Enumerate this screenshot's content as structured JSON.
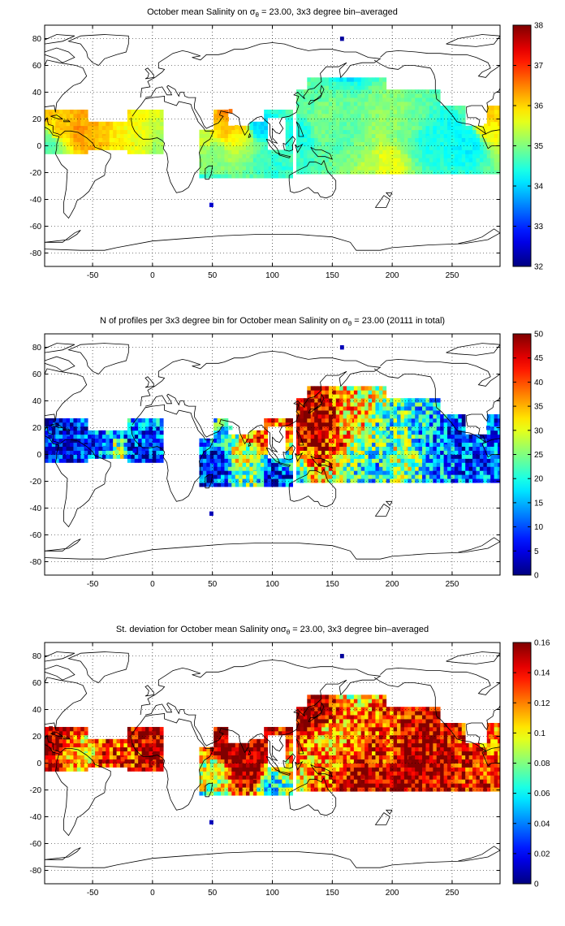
{
  "chart_data": [
    {
      "type": "heatmap",
      "title": "October mean Salinity on σθ = 23.00, 3x3 degree bin–averaged",
      "title_parts": {
        "prefix": "October mean Salinity on ",
        "sym": "σ",
        "sub": "θ",
        "suffix": " = 23.00, 3x3 degree bin–averaged"
      },
      "xlim": [
        -90,
        290
      ],
      "ylim": [
        -90,
        90
      ],
      "xticks": [
        -50,
        0,
        50,
        100,
        150,
        200,
        250
      ],
      "yticks": [
        -80,
        -60,
        -40,
        -20,
        0,
        20,
        40,
        60,
        80
      ],
      "grid": true,
      "colorbar": {
        "min": 32,
        "max": 38,
        "ticks": [
          32,
          33,
          34,
          35,
          36,
          37,
          38
        ]
      },
      "bin_size_deg": 3,
      "cells": [
        {
          "lon": 158,
          "lat": 80,
          "value": 32.2
        },
        {
          "lon": 49,
          "lat": -44,
          "value": 32.5
        },
        {
          "lon": -85,
          "lat": 24,
          "value": 36.2
        },
        {
          "lon": -82,
          "lat": 20,
          "value": 35.9
        },
        {
          "lon": -79,
          "lat": 12,
          "value": 36.0
        },
        {
          "lon": -76,
          "lat": 15,
          "value": 36.1
        },
        {
          "lon": -88,
          "lat": 6,
          "value": 34.9
        },
        {
          "lon": -85,
          "lat": 0,
          "value": 34.7
        },
        {
          "lon": -55,
          "lat": 18,
          "value": 36.2
        },
        {
          "lon": -60,
          "lat": 12,
          "value": 36.4
        },
        {
          "lon": -52,
          "lat": 9,
          "value": 36.2
        },
        {
          "lon": -40,
          "lat": 6,
          "value": 36.1
        },
        {
          "lon": -30,
          "lat": 4,
          "value": 35.8
        },
        {
          "lon": -20,
          "lat": 3,
          "value": 35.7
        },
        {
          "lon": -10,
          "lat": 2,
          "value": 35.6
        },
        {
          "lon": 5,
          "lat": 0,
          "value": 35.2
        },
        {
          "lon": 45,
          "lat": 5,
          "value": 35.4
        },
        {
          "lon": 50,
          "lat": -6,
          "value": 35.0
        },
        {
          "lon": 55,
          "lat": 15,
          "value": 36.0
        },
        {
          "lon": 62,
          "lat": 20,
          "value": 36.3
        },
        {
          "lon": 65,
          "lat": 26,
          "value": 36.6
        },
        {
          "lon": 70,
          "lat": 14,
          "value": 36.0
        },
        {
          "lon": 75,
          "lat": 5,
          "value": 35.6
        },
        {
          "lon": 80,
          "lat": -6,
          "value": 35.1
        },
        {
          "lon": 90,
          "lat": 14,
          "value": 34.0
        },
        {
          "lon": 88,
          "lat": -10,
          "value": 34.7
        },
        {
          "lon": 95,
          "lat": -16,
          "value": 34.6
        },
        {
          "lon": 105,
          "lat": -16,
          "value": 34.5
        },
        {
          "lon": 115,
          "lat": -14,
          "value": 34.6
        },
        {
          "lon": 122,
          "lat": 10,
          "value": 34.4
        },
        {
          "lon": 130,
          "lat": 30,
          "value": 34.8
        },
        {
          "lon": 140,
          "lat": 22,
          "value": 35.0
        },
        {
          "lon": 150,
          "lat": 14,
          "value": 34.9
        },
        {
          "lon": 160,
          "lat": 5,
          "value": 34.7
        },
        {
          "lon": 170,
          "lat": -5,
          "value": 35.0
        },
        {
          "lon": 180,
          "lat": -14,
          "value": 35.3
        },
        {
          "lon": 195,
          "lat": -12,
          "value": 35.6
        },
        {
          "lon": 200,
          "lat": 20,
          "value": 35.1
        },
        {
          "lon": 215,
          "lat": 15,
          "value": 34.9
        },
        {
          "lon": 230,
          "lat": 6,
          "value": 34.4
        },
        {
          "lon": 250,
          "lat": 10,
          "value": 34.3
        },
        {
          "lon": 265,
          "lat": 4,
          "value": 34.2
        },
        {
          "lon": 278,
          "lat": 15,
          "value": 35.8
        },
        {
          "lon": 283,
          "lat": 25,
          "value": 36.0
        }
      ]
    },
    {
      "type": "heatmap",
      "title": "N of profiles per 3x3 degree bin for October mean Salinity on σθ = 23.00 (20111 in total)",
      "title_parts": {
        "prefix": "N of profiles per 3x3 degree bin for October mean Salinity on ",
        "sym": "σ",
        "sub": "θ",
        "suffix": " = 23.00 (20111 in total)"
      },
      "xlim": [
        -90,
        290
      ],
      "ylim": [
        -90,
        90
      ],
      "xticks": [
        -50,
        0,
        50,
        100,
        150,
        200,
        250
      ],
      "yticks": [
        -80,
        -60,
        -40,
        -20,
        0,
        20,
        40,
        60,
        80
      ],
      "grid": true,
      "colorbar": {
        "min": 0,
        "max": 50,
        "ticks": [
          0,
          5,
          10,
          15,
          20,
          25,
          30,
          35,
          40,
          45,
          50
        ]
      },
      "bin_size_deg": 3,
      "cells": [
        {
          "lon": 158,
          "lat": 80,
          "value": 3
        },
        {
          "lon": 49,
          "lat": -44,
          "value": 3
        },
        {
          "lon": -85,
          "lat": 24,
          "value": 4
        },
        {
          "lon": -82,
          "lat": 10,
          "value": 6
        },
        {
          "lon": -70,
          "lat": 12,
          "value": 5
        },
        {
          "lon": -55,
          "lat": 6,
          "value": 8
        },
        {
          "lon": -40,
          "lat": 5,
          "value": 12
        },
        {
          "lon": -30,
          "lat": 2,
          "value": 25
        },
        {
          "lon": -15,
          "lat": 3,
          "value": 6
        },
        {
          "lon": 50,
          "lat": -5,
          "value": 6
        },
        {
          "lon": 55,
          "lat": 10,
          "value": 14
        },
        {
          "lon": 65,
          "lat": 20,
          "value": 22
        },
        {
          "lon": 75,
          "lat": 5,
          "value": 30
        },
        {
          "lon": 85,
          "lat": -10,
          "value": 26
        },
        {
          "lon": 88,
          "lat": 15,
          "value": 40
        },
        {
          "lon": 100,
          "lat": -15,
          "value": 8
        },
        {
          "lon": 135,
          "lat": 30,
          "value": 48
        },
        {
          "lon": 140,
          "lat": 20,
          "value": 50
        },
        {
          "lon": 150,
          "lat": 10,
          "value": 42
        },
        {
          "lon": 165,
          "lat": 25,
          "value": 35
        },
        {
          "lon": 170,
          "lat": 0,
          "value": 24
        },
        {
          "lon": 180,
          "lat": -10,
          "value": 18
        },
        {
          "lon": 195,
          "lat": 15,
          "value": 21
        },
        {
          "lon": 210,
          "lat": 5,
          "value": 28
        },
        {
          "lon": 225,
          "lat": 10,
          "value": 16
        },
        {
          "lon": 245,
          "lat": 6,
          "value": 12
        },
        {
          "lon": 260,
          "lat": 12,
          "value": 9
        },
        {
          "lon": 280,
          "lat": 20,
          "value": 10
        }
      ]
    },
    {
      "type": "heatmap",
      "title": "St. deviation for October mean Salinity onσθ = 23.00, 3x3 degree bin–averaged",
      "title_parts": {
        "prefix": "St. deviation for October mean Salinity on",
        "sym": "σ",
        "sub": "θ",
        "suffix": " = 23.00, 3x3 degree bin–averaged"
      },
      "xlim": [
        -90,
        290
      ],
      "ylim": [
        -90,
        90
      ],
      "xticks": [
        -50,
        0,
        50,
        100,
        150,
        200,
        250
      ],
      "yticks": [
        -80,
        -60,
        -40,
        -20,
        0,
        20,
        40,
        60,
        80
      ],
      "grid": true,
      "colorbar": {
        "min": 0,
        "max": 0.16,
        "ticks": [
          0,
          0.02,
          0.04,
          0.06,
          0.08,
          0.1,
          0.12,
          0.14,
          0.16
        ]
      },
      "bin_size_deg": 3,
      "cells": [
        {
          "lon": 158,
          "lat": 80,
          "value": 0.005
        },
        {
          "lon": 49,
          "lat": -44,
          "value": 0.01
        },
        {
          "lon": -85,
          "lat": 26,
          "value": 0.16
        },
        {
          "lon": -82,
          "lat": 12,
          "value": 0.15
        },
        {
          "lon": -70,
          "lat": 8,
          "value": 0.12
        },
        {
          "lon": -55,
          "lat": 6,
          "value": 0.1
        },
        {
          "lon": -40,
          "lat": 4,
          "value": 0.14
        },
        {
          "lon": -25,
          "lat": 3,
          "value": 0.13
        },
        {
          "lon": 0,
          "lat": 0,
          "value": 0.15
        },
        {
          "lon": 50,
          "lat": -5,
          "value": 0.09
        },
        {
          "lon": 60,
          "lat": 10,
          "value": 0.16
        },
        {
          "lon": 75,
          "lat": 5,
          "value": 0.16
        },
        {
          "lon": 85,
          "lat": -10,
          "value": 0.16
        },
        {
          "lon": 95,
          "lat": -16,
          "value": 0.06
        },
        {
          "lon": 135,
          "lat": 35,
          "value": 0.16
        },
        {
          "lon": 145,
          "lat": 20,
          "value": 0.11
        },
        {
          "lon": 160,
          "lat": 8,
          "value": 0.12
        },
        {
          "lon": 175,
          "lat": -10,
          "value": 0.15
        },
        {
          "lon": 195,
          "lat": 15,
          "value": 0.13
        },
        {
          "lon": 215,
          "lat": 4,
          "value": 0.16
        },
        {
          "lon": 240,
          "lat": 8,
          "value": 0.15
        },
        {
          "lon": 260,
          "lat": 12,
          "value": 0.14
        },
        {
          "lon": 282,
          "lat": 20,
          "value": 0.12
        }
      ]
    }
  ]
}
